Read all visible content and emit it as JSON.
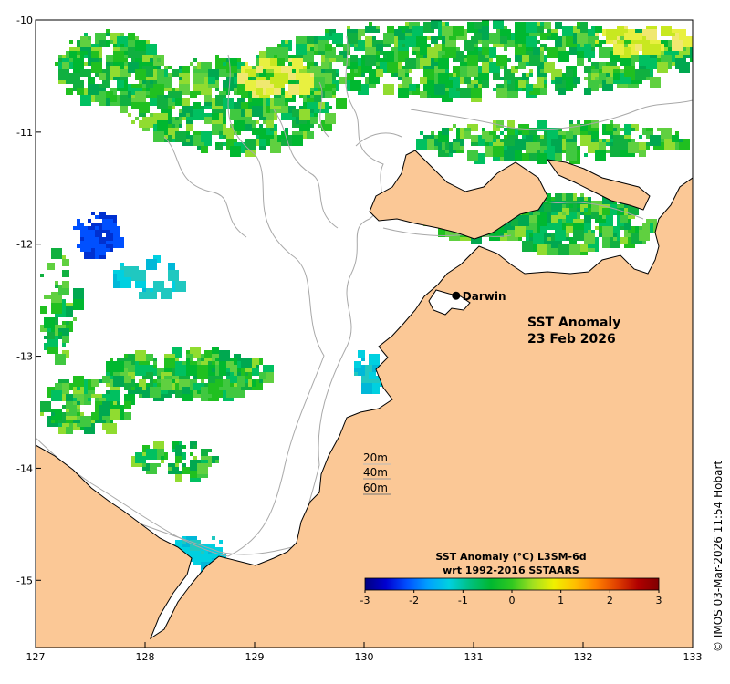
{
  "map": {
    "title_line1": "SST Anomaly",
    "title_line2": "23 Feb 2026",
    "place": "Darwin",
    "credit": "© IMOS 03-Mar-2026 11:54 Hobart",
    "depth_labels": [
      "20m",
      "40m",
      "60m"
    ],
    "colors": {
      "land": "#fbc896",
      "sea": "#ffffff",
      "contour": "#a8a8a8",
      "coast": "#000000"
    }
  },
  "chart_data": {
    "type": "heatmap",
    "x_ticks": [
      "127",
      "128",
      "129",
      "130",
      "131",
      "132",
      "133"
    ],
    "y_ticks": [
      "-10",
      "-11",
      "-12",
      "-13",
      "-14",
      "-15"
    ],
    "xlim": [
      127,
      133
    ],
    "ylim": [
      -15.6,
      -10
    ],
    "place_lon": 130.84,
    "place_lat": -12.46,
    "colorbar": {
      "title_line1": "SST Anomaly (°C) L3SM-6d",
      "title_line2": "wrt 1992-2016 SSTAARS",
      "min": -3,
      "max": 3,
      "ticks": [
        "-3",
        "-2",
        "-1",
        "0",
        "1",
        "2",
        "3"
      ],
      "colors": [
        "#00007f",
        "#0000d0",
        "#0050ff",
        "#00a0ff",
        "#00d0e0",
        "#00c080",
        "#00b830",
        "#30c820",
        "#a0e020",
        "#f0f000",
        "#ffc000",
        "#ff8000",
        "#e04000",
        "#b00000",
        "#800000"
      ]
    }
  }
}
